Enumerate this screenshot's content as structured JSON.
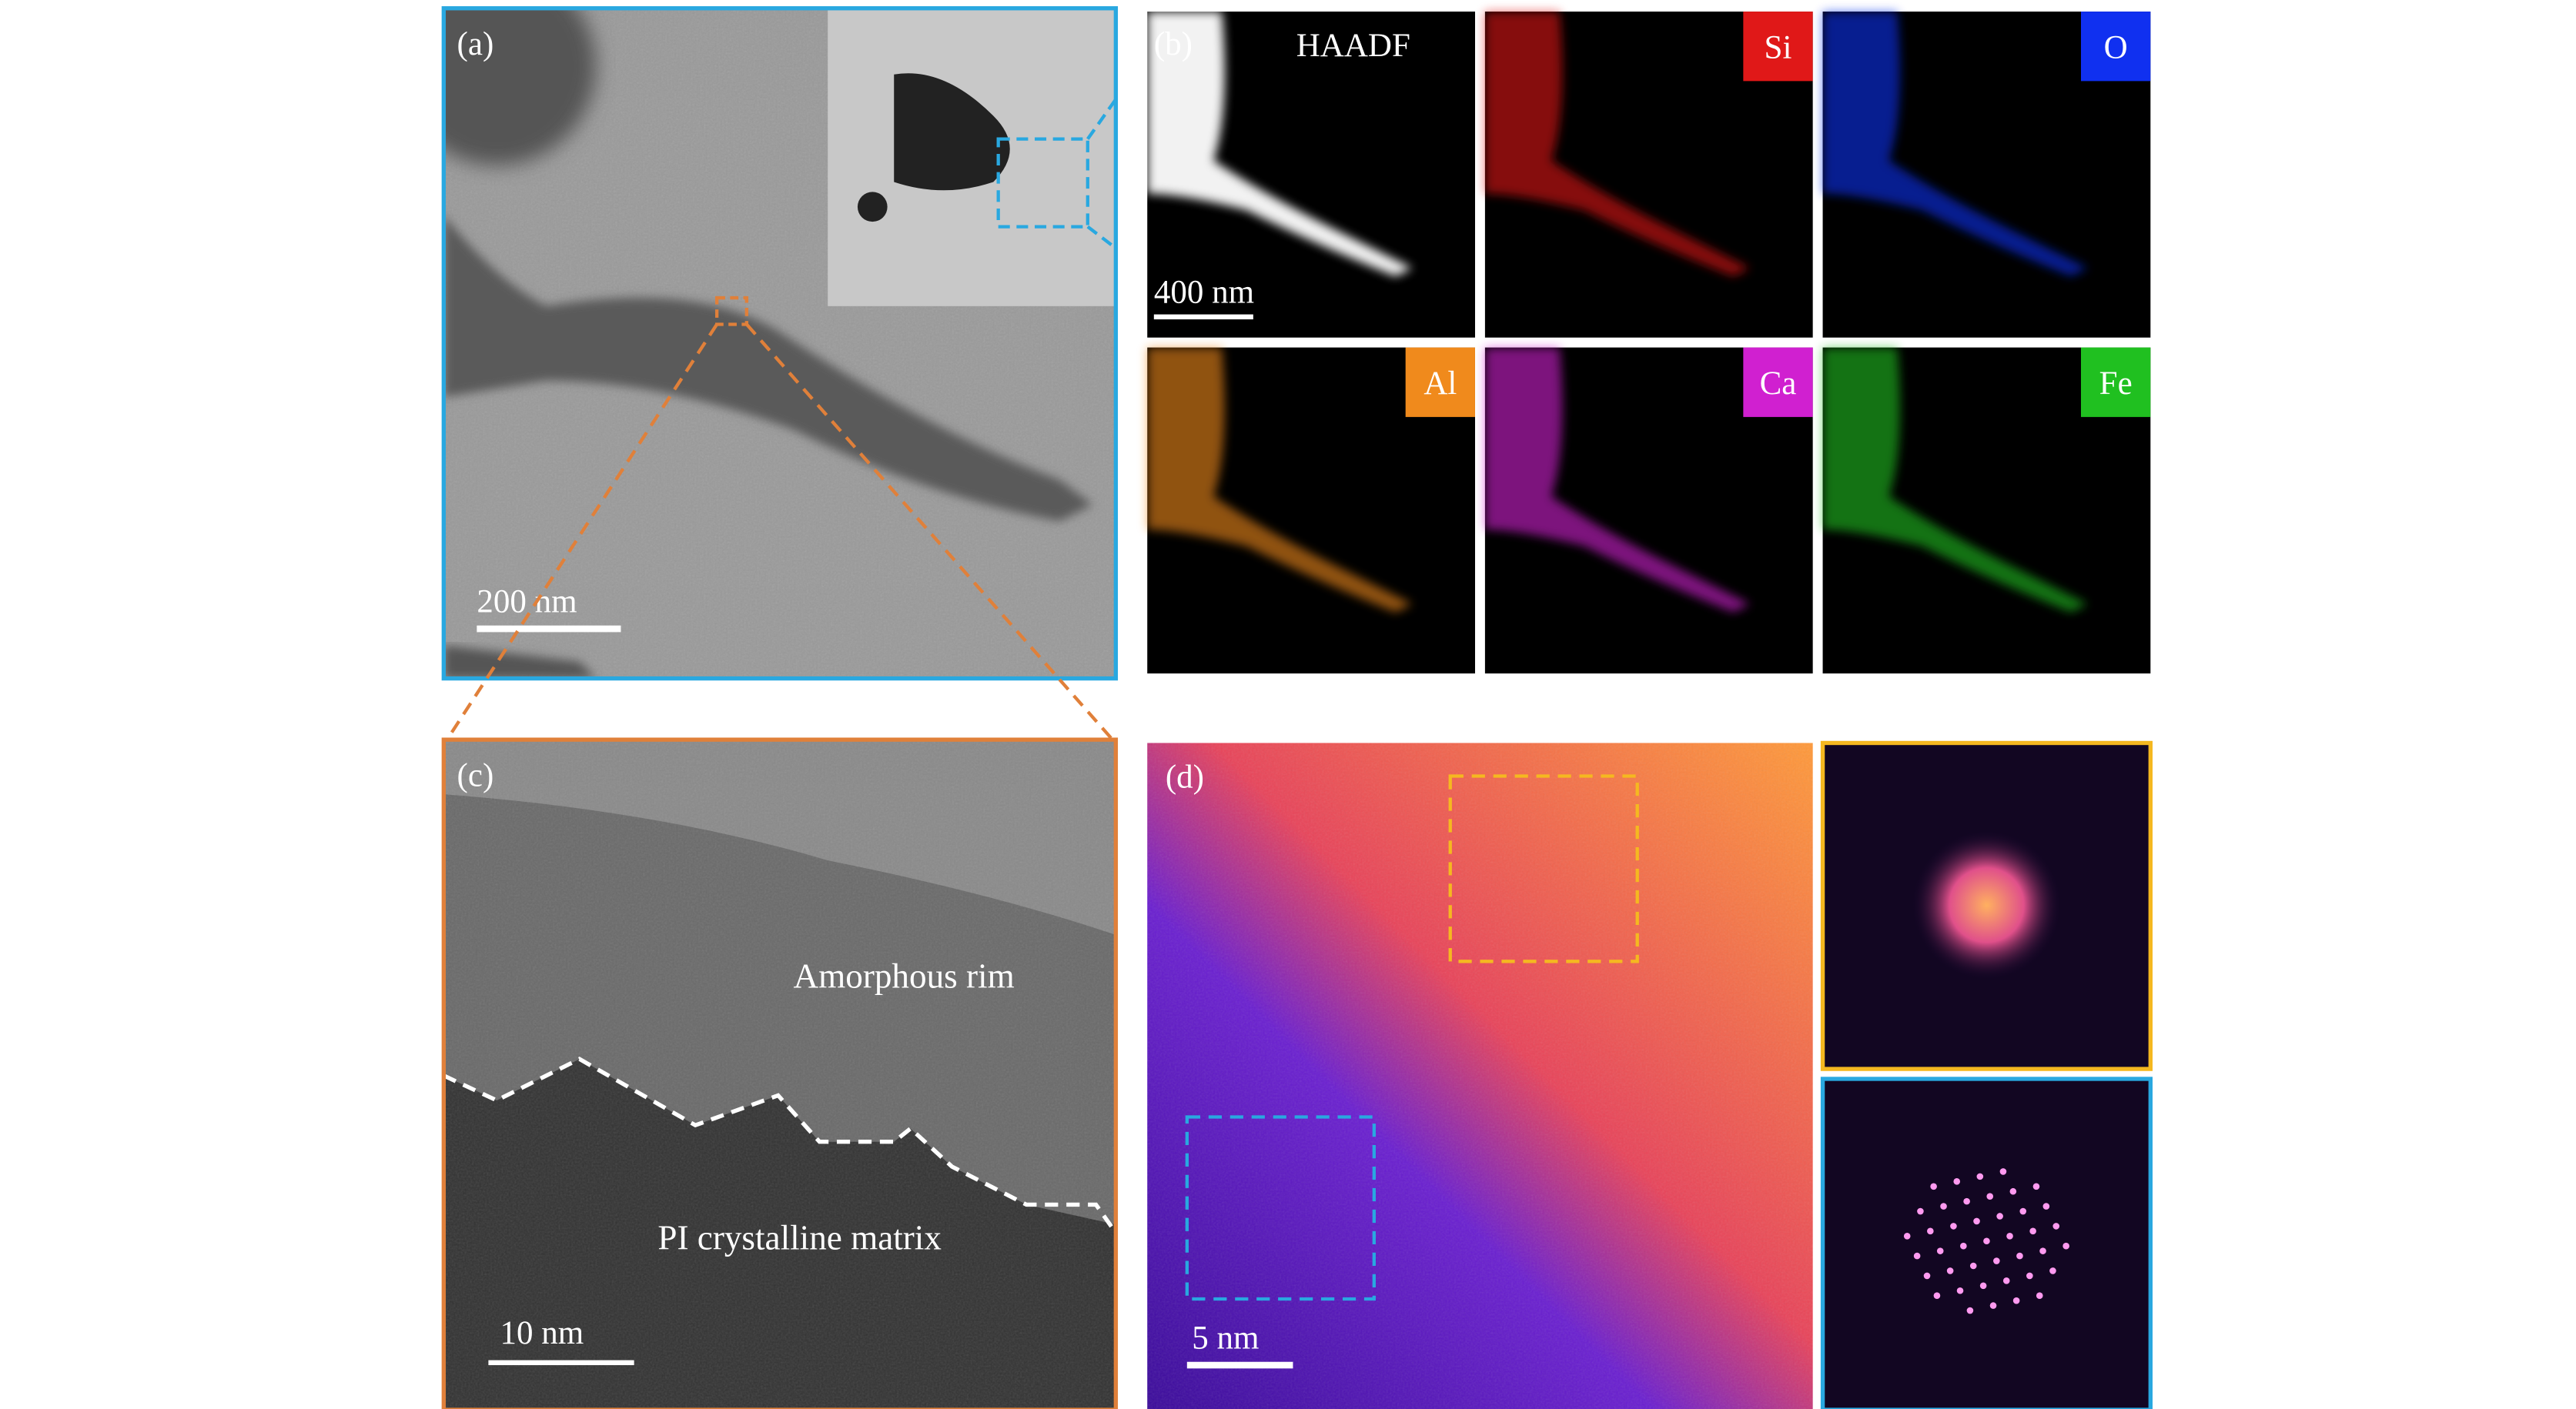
{
  "panels": [
    {
      "label": "(a)",
      "scale_bar": "200 nm"
    },
    {
      "label": "(b)",
      "scale_bar": "400 nm",
      "maps": [
        {
          "label": "HAADF"
        },
        {
          "label": "Si"
        },
        {
          "label": "O"
        },
        {
          "label": "Al"
        },
        {
          "label": "Ca"
        },
        {
          "label": "Fe"
        }
      ]
    },
    {
      "label": "(c)",
      "scale_bar": "10 nm",
      "annotations": [
        "Amorphous rim",
        "PI crystalline matrix"
      ]
    },
    {
      "label": "(d)",
      "scale_bar": "5 nm"
    }
  ]
}
